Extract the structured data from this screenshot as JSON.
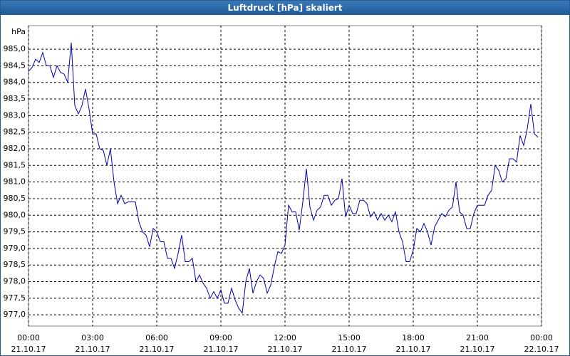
{
  "chart_data": {
    "type": "line",
    "title": "Luftdruck [hPa] skaliert",
    "ylabel": "hPa",
    "x": [
      0,
      10,
      20,
      30,
      40,
      50,
      60,
      70,
      80,
      90,
      100,
      110,
      120,
      130,
      140,
      150,
      160,
      170,
      180,
      190,
      200,
      210,
      220,
      230,
      240,
      250,
      260,
      270,
      280,
      290,
      300,
      310,
      320,
      330,
      340,
      350,
      360,
      370,
      380,
      390,
      400,
      410,
      420,
      430,
      440,
      450,
      460,
      470,
      480,
      490,
      500,
      510,
      520,
      530,
      540,
      550,
      560,
      570,
      580,
      590,
      600,
      610,
      620,
      630,
      640,
      650,
      660,
      670,
      680,
      690,
      700,
      710,
      720,
      730,
      740,
      750,
      760,
      770,
      780,
      790,
      800,
      810,
      820,
      830,
      840,
      850,
      860,
      870,
      880,
      890,
      900,
      910,
      920,
      930,
      940,
      950,
      960,
      970,
      980,
      990,
      1000,
      1010,
      1020,
      1030,
      1040,
      1050,
      1060,
      1070,
      1080,
      1090,
      1100,
      1110,
      1120,
      1130,
      1140,
      1150,
      1160,
      1170,
      1180,
      1190,
      1200,
      1210,
      1220,
      1230,
      1240,
      1250,
      1260,
      1270,
      1280,
      1290,
      1300,
      1310,
      1320,
      1330,
      1340,
      1350,
      1360,
      1370,
      1380,
      1390,
      1400,
      1410,
      1420,
      1430
    ],
    "series": [
      {
        "name": "Luftdruck",
        "color": "#0000b0",
        "values": [
          984.33,
          984.45,
          984.7,
          984.6,
          984.9,
          984.5,
          984.5,
          984.15,
          984.5,
          984.3,
          984.25,
          984.0,
          985.2,
          983.3,
          983.05,
          983.3,
          983.8,
          983.2,
          982.45,
          982.45,
          982.0,
          981.95,
          981.5,
          982.0,
          981.0,
          980.35,
          980.6,
          980.35,
          980.4,
          980.4,
          980.4,
          979.8,
          979.5,
          979.4,
          979.05,
          979.6,
          979.5,
          979.2,
          979.2,
          978.7,
          978.7,
          978.4,
          978.85,
          979.4,
          978.6,
          978.6,
          978.7,
          978.0,
          978.2,
          977.95,
          977.8,
          977.5,
          977.7,
          977.5,
          977.75,
          977.35,
          977.35,
          977.8,
          977.45,
          977.2,
          977.05,
          978.0,
          978.4,
          977.65,
          978.0,
          978.2,
          978.1,
          977.65,
          977.9,
          978.45,
          978.9,
          978.85,
          979.1,
          980.3,
          980.1,
          980.1,
          979.55,
          980.4,
          981.4,
          980.25,
          979.85,
          980.15,
          980.25,
          980.6,
          980.6,
          980.3,
          980.45,
          980.5,
          981.1,
          979.95,
          980.3,
          980.05,
          980.05,
          980.45,
          980.45,
          980.35,
          979.95,
          980.1,
          979.85,
          980.05,
          979.85,
          980.0,
          979.8,
          980.1,
          979.5,
          979.2,
          978.6,
          978.6,
          978.95,
          979.6,
          979.5,
          979.75,
          979.5,
          979.1,
          979.65,
          979.85,
          980.05,
          979.95,
          980.15,
          980.25,
          981.0,
          980.1,
          980.0,
          979.6,
          979.6,
          980.05,
          980.3,
          980.3,
          980.3,
          980.6,
          980.75,
          981.5,
          981.35,
          981.0,
          981.1,
          981.7,
          981.7,
          981.6,
          982.4,
          982.1,
          982.6,
          983.35,
          982.45,
          982.35
        ]
      }
    ],
    "xlim": [
      0,
      1440
    ],
    "xticks": [
      {
        "value": 0,
        "label": "00:00",
        "date": "21.10.17"
      },
      {
        "value": 180,
        "label": "03:00",
        "date": "21.10.17"
      },
      {
        "value": 360,
        "label": "06:00",
        "date": "21.10.17"
      },
      {
        "value": 540,
        "label": "09:00",
        "date": "21.10.17"
      },
      {
        "value": 720,
        "label": "12:00",
        "date": "21.10.17"
      },
      {
        "value": 900,
        "label": "15:00",
        "date": "21.10.17"
      },
      {
        "value": 1080,
        "label": "18:00",
        "date": "21.10.17"
      },
      {
        "value": 1260,
        "label": "21:00",
        "date": "21.10.17"
      },
      {
        "value": 1440,
        "label": "00:00",
        "date": "22.10.17"
      }
    ],
    "ylim": [
      976.66,
      985.71
    ],
    "yticks": [
      {
        "value": 977,
        "label": "977,0"
      },
      {
        "value": 977.5,
        "label": "977,5"
      },
      {
        "value": 978,
        "label": "978,0"
      },
      {
        "value": 978.5,
        "label": "978,5"
      },
      {
        "value": 979,
        "label": "979,0"
      },
      {
        "value": 979.5,
        "label": "979,5"
      },
      {
        "value": 980,
        "label": "980,0"
      },
      {
        "value": 980.5,
        "label": "980,5"
      },
      {
        "value": 981,
        "label": "981,0"
      },
      {
        "value": 981.5,
        "label": "981,5"
      },
      {
        "value": 982,
        "label": "982,0"
      },
      {
        "value": 982.5,
        "label": "982,5"
      },
      {
        "value": 983,
        "label": "983,0"
      },
      {
        "value": 983.5,
        "label": "983,5"
      },
      {
        "value": 984,
        "label": "984,0"
      },
      {
        "value": 984.5,
        "label": "984,5"
      },
      {
        "value": 985,
        "label": "985,0"
      }
    ],
    "grid": true
  }
}
